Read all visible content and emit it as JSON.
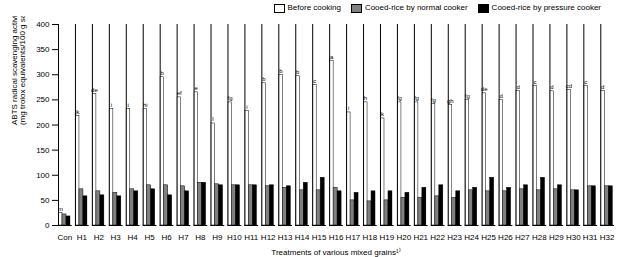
{
  "chart_data": {
    "type": "bar",
    "x_label": "Treatments of various mixed grains¹⁾",
    "y_label": "ABTS radical scavenging activity\n(mg trolox equivalents/100 g sample)",
    "categories": [
      "Con",
      "H1",
      "H2",
      "H3",
      "H4",
      "H5",
      "H6",
      "H7",
      "H8",
      "H9",
      "H10",
      "H11",
      "H12",
      "H13",
      "H14",
      "H15",
      "H16",
      "H17",
      "H18",
      "H19",
      "H20",
      "H21",
      "H22",
      "H23",
      "H24",
      "H25",
      "H26",
      "H27",
      "H28",
      "H29",
      "H30",
      "H31",
      "H32"
    ],
    "series": [
      {
        "name": "Before cooking",
        "color": "#ffffff",
        "values": [
          25,
          218,
          262,
          232,
          232,
          232,
          295,
          255,
          265,
          203,
          245,
          228,
          283,
          300,
          297,
          280,
          328,
          225,
          245,
          213,
          245,
          245,
          242,
          240,
          250,
          263,
          250,
          268,
          278,
          267,
          270,
          278,
          268
        ],
        "letters": [
          "m",
          "jk",
          "de",
          "i",
          "i",
          "hi",
          "b",
          "ef",
          "e",
          "l",
          "fg",
          "i",
          "b",
          "b",
          "b",
          "c",
          "a",
          "i",
          "h",
          "k",
          "fg",
          "fg",
          "fg",
          "gh",
          "fg",
          "de",
          "d",
          "d",
          "c",
          "d",
          "cd",
          "c",
          "d"
        ]
      },
      {
        "name": "Cooed-rice by normal cooker",
        "color": "#808080",
        "values": [
          22,
          72,
          68,
          65,
          72,
          80,
          80,
          78,
          85,
          82,
          80,
          80,
          78,
          75,
          70,
          70,
          75,
          50,
          48,
          50,
          55,
          55,
          58,
          55,
          70,
          68,
          68,
          72,
          70,
          72,
          70,
          78,
          78
        ]
      },
      {
        "name": "Cooed-rice by pressure cooker",
        "color": "#000000",
        "values": [
          18,
          58,
          60,
          58,
          68,
          72,
          60,
          68,
          85,
          80,
          80,
          80,
          80,
          78,
          85,
          95,
          68,
          65,
          68,
          68,
          65,
          75,
          80,
          68,
          75,
          95,
          75,
          80,
          95,
          80,
          70,
          78,
          78
        ]
      }
    ],
    "ylim": [
      0,
      400
    ],
    "yticks": [
      0,
      50,
      100,
      150,
      200,
      250,
      300,
      350,
      400
    ],
    "legend": "top-right"
  }
}
